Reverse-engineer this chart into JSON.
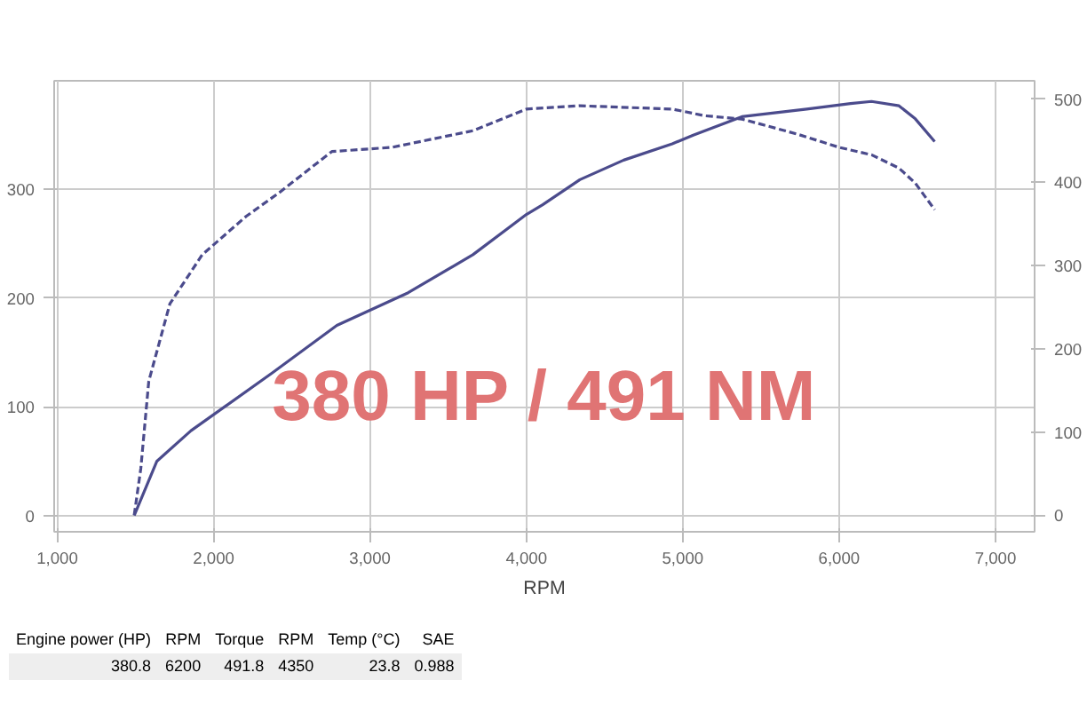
{
  "chart_data": {
    "type": "line",
    "xlabel": "RPM",
    "series": [
      {
        "color": "#4b4b8c",
        "line_style": "solid",
        "axis": "y",
        "x": [
          1492,
          1637,
          1855,
          2373,
          2788,
          3244,
          3658,
          4000,
          4104,
          4342,
          4622,
          4933,
          5067,
          5378,
          5793,
          6073,
          6207,
          6383,
          6487,
          6611
        ],
        "values": [
          0,
          50,
          78,
          131,
          175,
          205,
          240,
          277,
          286,
          309,
          327,
          342,
          350,
          367,
          374,
          379,
          381,
          377,
          365,
          344
        ]
      },
      {
        "color": "#4b4b8c",
        "line_style": "dashed",
        "axis": "y2",
        "x": [
          1492,
          1534,
          1585,
          1720,
          1927,
          2207,
          2415,
          2756,
          3140,
          3658,
          4000,
          4342,
          4933,
          5140,
          5378,
          5731,
          6000,
          6207,
          6383,
          6487,
          6611
        ],
        "values": [
          0,
          56,
          161,
          254,
          313,
          359,
          387,
          437,
          442,
          462,
          488,
          492,
          488,
          480,
          476,
          458,
          442,
          433,
          417,
          399,
          367
        ]
      }
    ],
    "xlim": [
      980,
      7250
    ],
    "xticks": [
      {
        "value": 1000,
        "label": "1,000"
      },
      {
        "value": 2000,
        "label": "2,000"
      },
      {
        "value": 3000,
        "label": "3,000"
      },
      {
        "value": 4000,
        "label": "4,000"
      },
      {
        "value": 5000,
        "label": "5,000"
      },
      {
        "value": 6000,
        "label": "6,000"
      },
      {
        "value": 7000,
        "label": "7,000"
      }
    ],
    "ylim": [
      -15,
      400
    ],
    "yticks": [
      0,
      100,
      200,
      300
    ],
    "y2lim": [
      -20,
      522
    ],
    "y2ticks": [
      0,
      100,
      200,
      300,
      400,
      500
    ],
    "grid": true,
    "annotations": [
      "380 HP / 491 NM",
      "Engine power (HP)",
      "RPM",
      "Torque",
      "RPM",
      "Temp (°C)",
      "SAE",
      "380.8",
      "6200",
      "491.8",
      "4350",
      "23.8",
      "0.988"
    ]
  }
}
